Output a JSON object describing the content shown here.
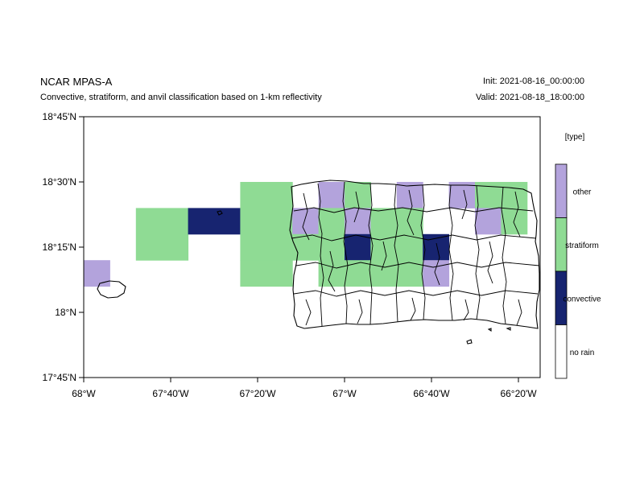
{
  "header": {
    "model": "NCAR MPAS-A",
    "description": "Convective, stratiform, and anvil classification based on 1-km reflectivity",
    "init": "Init: 2021-08-16_00:00:00",
    "valid": "Valid: 2021-08-18_18:00:00"
  },
  "chart_data": {
    "type": "heatmap",
    "lon_range": [
      -68.0,
      -66.25
    ],
    "lat_range": [
      17.75,
      18.75
    ],
    "x_ticks": [
      {
        "value": -68.0,
        "label": "68°W"
      },
      {
        "value": -67.6667,
        "label": "67°40'W"
      },
      {
        "value": -67.3333,
        "label": "67°20'W"
      },
      {
        "value": -67.0,
        "label": "67°W"
      },
      {
        "value": -66.6667,
        "label": "66°40'W"
      },
      {
        "value": -66.3333,
        "label": "66°20'W"
      }
    ],
    "y_ticks": [
      {
        "value": 17.75,
        "label": "17°45'N"
      },
      {
        "value": 18.0,
        "label": "18°N"
      },
      {
        "value": 18.25,
        "label": "18°15'N"
      },
      {
        "value": 18.5,
        "label": "18°30'N"
      },
      {
        "value": 18.75,
        "label": "18°45'N"
      }
    ],
    "legend": {
      "title": "[type]",
      "classes": [
        {
          "code": 3,
          "label": "other",
          "color": "#b3a3dc"
        },
        {
          "code": 2,
          "label": "stratiform",
          "color": "#8fdb94"
        },
        {
          "code": 1,
          "label": "convective",
          "color": "#172470"
        },
        {
          "code": 0,
          "label": "no rain",
          "color": "#ffffff"
        }
      ]
    },
    "cells": [
      {
        "lon": [
          -68.0,
          -67.9
        ],
        "lat": [
          18.1,
          18.2
        ],
        "class": 3
      },
      {
        "lon": [
          -67.8,
          -67.6
        ],
        "lat": [
          18.2,
          18.4
        ],
        "class": 2
      },
      {
        "lon": [
          -67.6,
          -67.4
        ],
        "lat": [
          18.3,
          18.4
        ],
        "class": 1
      },
      {
        "lon": [
          -67.4,
          -67.2
        ],
        "lat": [
          18.2,
          18.5
        ],
        "class": 2
      },
      {
        "lon": [
          -67.4,
          -67.2
        ],
        "lat": [
          18.1,
          18.2
        ],
        "class": 2
      },
      {
        "lon": [
          -67.2,
          -67.1
        ],
        "lat": [
          18.3,
          18.4
        ],
        "class": 3
      },
      {
        "lon": [
          -67.2,
          -67.1
        ],
        "lat": [
          18.2,
          18.3
        ],
        "class": 2
      },
      {
        "lon": [
          -67.1,
          -67.0
        ],
        "lat": [
          18.4,
          18.5
        ],
        "class": 3
      },
      {
        "lon": [
          -67.1,
          -67.0
        ],
        "lat": [
          18.1,
          18.4
        ],
        "class": 2
      },
      {
        "lon": [
          -67.0,
          -66.9
        ],
        "lat": [
          18.4,
          18.5
        ],
        "class": 2
      },
      {
        "lon": [
          -67.0,
          -66.9
        ],
        "lat": [
          18.3,
          18.4
        ],
        "class": 3
      },
      {
        "lon": [
          -67.0,
          -66.9
        ],
        "lat": [
          18.2,
          18.3
        ],
        "class": 1
      },
      {
        "lon": [
          -67.0,
          -66.9
        ],
        "lat": [
          18.1,
          18.2
        ],
        "class": 2
      },
      {
        "lon": [
          -66.9,
          -66.8
        ],
        "lat": [
          18.2,
          18.4
        ],
        "class": 2
      },
      {
        "lon": [
          -66.9,
          -66.8
        ],
        "lat": [
          18.1,
          18.2
        ],
        "class": 2
      },
      {
        "lon": [
          -66.8,
          -66.7
        ],
        "lat": [
          18.4,
          18.5
        ],
        "class": 3
      },
      {
        "lon": [
          -66.8,
          -66.7
        ],
        "lat": [
          18.1,
          18.4
        ],
        "class": 2
      },
      {
        "lon": [
          -66.7,
          -66.6
        ],
        "lat": [
          18.2,
          18.3
        ],
        "class": 1
      },
      {
        "lon": [
          -66.7,
          -66.6
        ],
        "lat": [
          18.1,
          18.2
        ],
        "class": 3
      },
      {
        "lon": [
          -66.6,
          -66.5
        ],
        "lat": [
          18.4,
          18.5
        ],
        "class": 3
      },
      {
        "lon": [
          -66.5,
          -66.4
        ],
        "lat": [
          18.4,
          18.5
        ],
        "class": 2
      },
      {
        "lon": [
          -66.5,
          -66.4
        ],
        "lat": [
          18.3,
          18.4
        ],
        "class": 3
      },
      {
        "lon": [
          -66.4,
          -66.3
        ],
        "lat": [
          18.4,
          18.5
        ],
        "class": 2
      },
      {
        "lon": [
          -66.4,
          -66.3
        ],
        "lat": [
          18.3,
          18.4
        ],
        "class": 2
      }
    ]
  }
}
